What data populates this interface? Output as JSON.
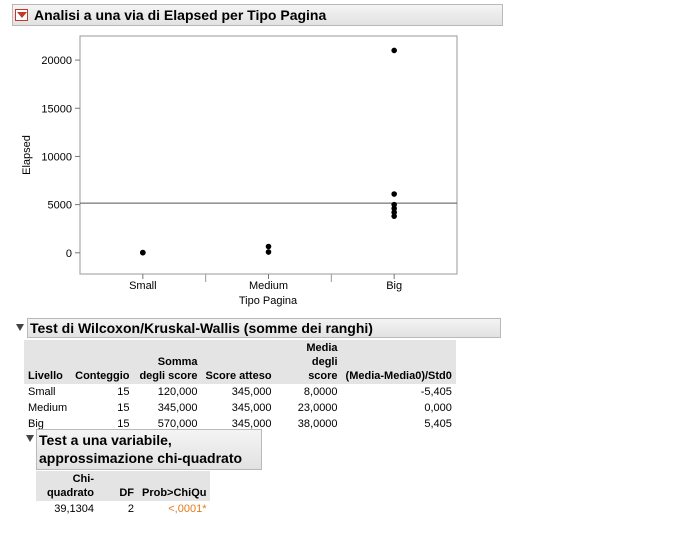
{
  "header": {
    "title": "Analisi a una via di Elapsed per Tipo Pagina"
  },
  "chart_data": {
    "type": "scatter",
    "xlabel": "Tipo Pagina",
    "ylabel": "Elapsed",
    "categories": [
      "Small",
      "Medium",
      "Big"
    ],
    "y_ticks": [
      "0",
      "5000",
      "10000",
      "15000",
      "20000"
    ],
    "ylim": [
      -2200,
      22500
    ],
    "mean_line": 5150,
    "grid": false,
    "points": {
      "Small": [
        30,
        10
      ],
      "Medium": [
        80,
        650
      ],
      "Big": [
        3800,
        4200,
        4600,
        5000,
        6100,
        21000
      ]
    }
  },
  "wilcoxon": {
    "title": "Test di Wilcoxon/Kruskal-Wallis (somme dei ranghi)",
    "columns": [
      {
        "key": "livello",
        "label": "Livello"
      },
      {
        "key": "conteggio",
        "label": "Conteggio"
      },
      {
        "key": "somma",
        "label": "Somma degli score"
      },
      {
        "key": "atteso",
        "label": "Score atteso"
      },
      {
        "key": "media",
        "label": "Media degli score"
      },
      {
        "key": "z",
        "label": "(Media-Media0)/Std0"
      }
    ],
    "rows": [
      {
        "livello": "Small",
        "conteggio": "15",
        "somma": "120,000",
        "atteso": "345,000",
        "media": "8,0000",
        "z": "-5,405"
      },
      {
        "livello": "Medium",
        "conteggio": "15",
        "somma": "345,000",
        "atteso": "345,000",
        "media": "23,0000",
        "z": "0,000"
      },
      {
        "livello": "Big",
        "conteggio": "15",
        "somma": "570,000",
        "atteso": "345,000",
        "media": "38,0000",
        "z": "5,405"
      }
    ]
  },
  "chi_test": {
    "title": "Test a una variabile, approssimazione chi-quadrato",
    "columns": {
      "chi": "Chi-quadrato",
      "df": "DF",
      "prob": "Prob>ChiQu"
    },
    "row": {
      "chi": "39,1304",
      "df": "2",
      "prob": "<,0001*"
    },
    "prob_color": "#e07b1a"
  }
}
